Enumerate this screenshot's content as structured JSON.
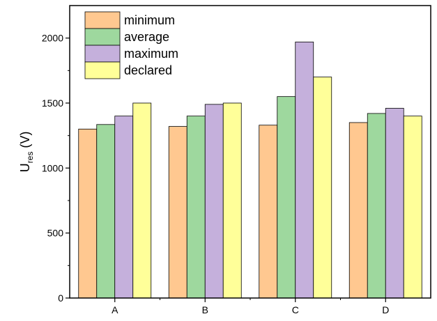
{
  "chart_data": {
    "type": "bar",
    "categories": [
      "A",
      "B",
      "C",
      "D"
    ],
    "series": [
      {
        "name": "minimum",
        "color": "#FFC890",
        "values": [
          1300,
          1320,
          1330,
          1350
        ]
      },
      {
        "name": "average",
        "color": "#9ED89E",
        "values": [
          1335,
          1400,
          1550,
          1420
        ]
      },
      {
        "name": "maximum",
        "color": "#C5B0DC",
        "values": [
          1400,
          1490,
          1970,
          1460
        ]
      },
      {
        "name": "declared",
        "color": "#FFFF99",
        "values": [
          1500,
          1500,
          1700,
          1400
        ]
      }
    ],
    "ylabel_main": "U",
    "ylabel_sub": "res",
    "ylabel_unit": " (V)",
    "xlabel": "",
    "ylim": [
      0,
      2250
    ],
    "yticks": [
      0,
      500,
      1000,
      1500,
      2000
    ],
    "ytick_labels": [
      "0",
      "500",
      "1000",
      "1500",
      "2000"
    ],
    "grid": false,
    "legend_position": "top-left"
  }
}
